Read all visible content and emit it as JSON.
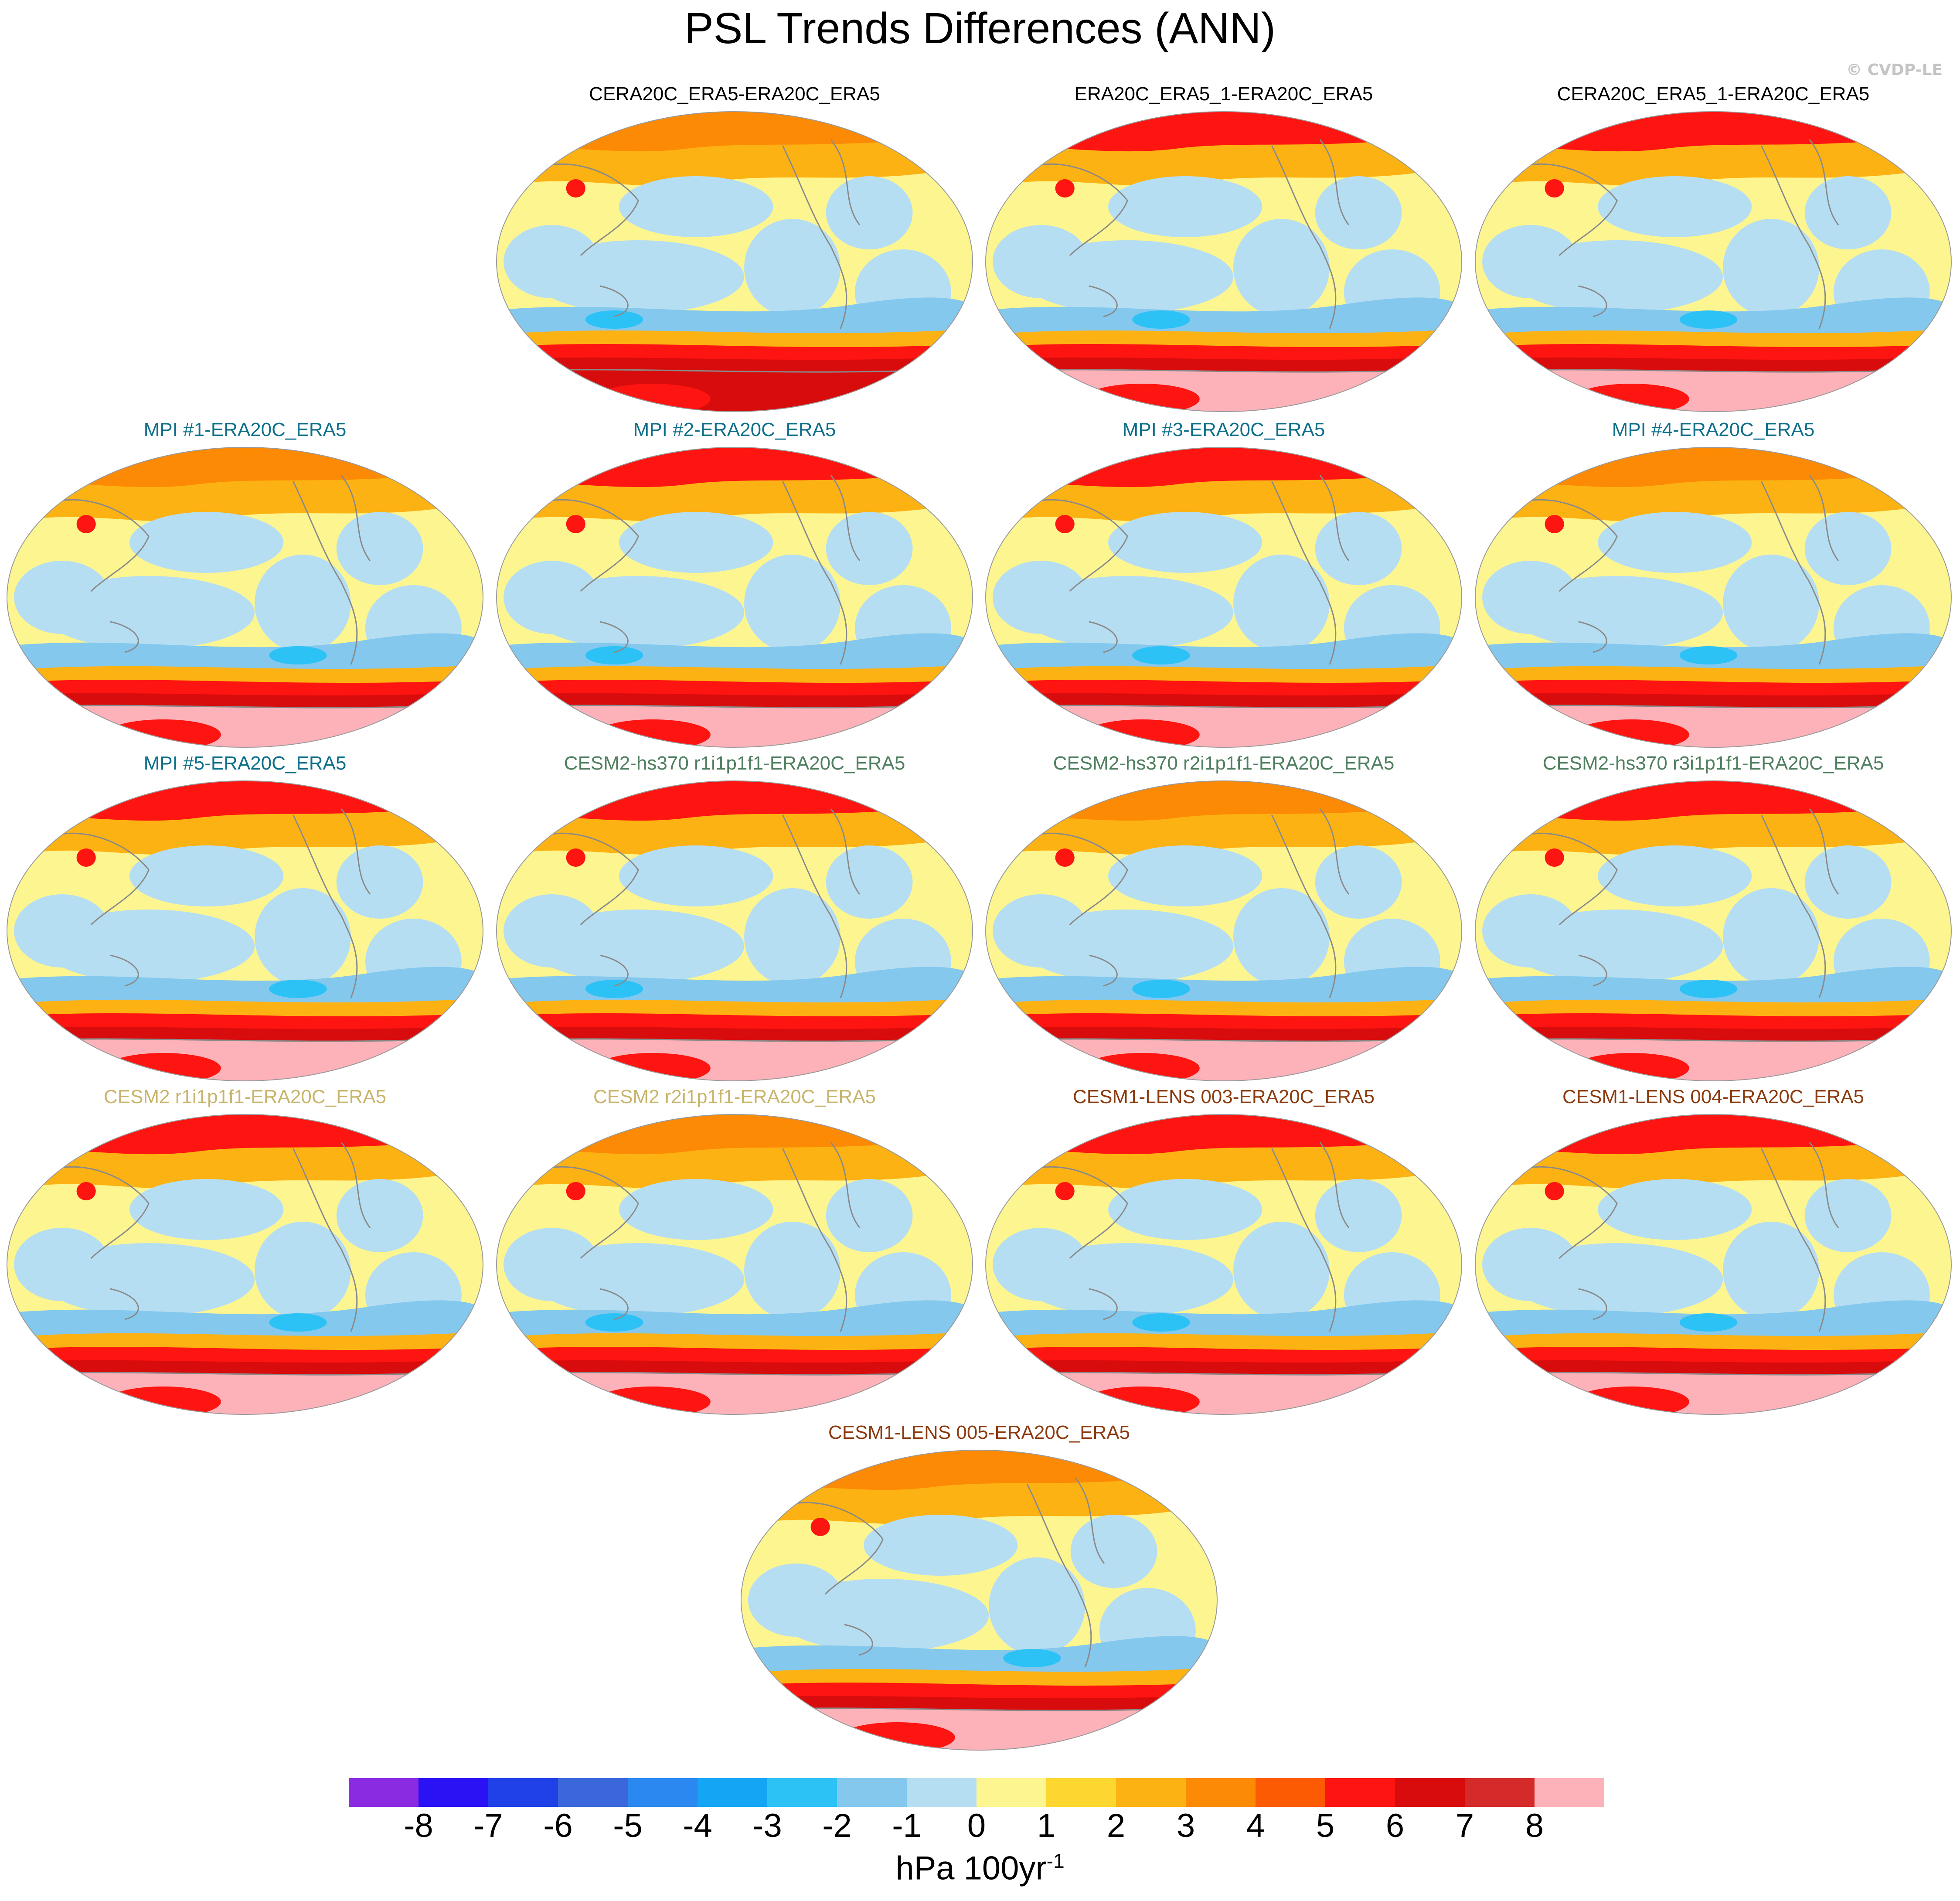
{
  "title": "PSL Trends Differences (ANN)",
  "credit": "© CVDP-LE",
  "colors": {
    "group_black": "#000000",
    "group_mpi": "#0e6f8a",
    "group_cesm2hs": "#4f7f5f",
    "group_cesm2": "#c8b46a",
    "group_cesm1": "#8b3a0e"
  },
  "panels": [
    {
      "title": "CERA20C_ERA5-ERA20C_ERA5",
      "group": "black",
      "row": 0,
      "col": 1
    },
    {
      "title": "ERA20C_ERA5_1-ERA20C_ERA5",
      "group": "black",
      "row": 0,
      "col": 2
    },
    {
      "title": "CERA20C_ERA5_1-ERA20C_ERA5",
      "group": "black",
      "row": 0,
      "col": 3
    },
    {
      "title": "MPI #1-ERA20C_ERA5",
      "group": "mpi",
      "row": 1,
      "col": 0
    },
    {
      "title": "MPI #2-ERA20C_ERA5",
      "group": "mpi",
      "row": 1,
      "col": 1
    },
    {
      "title": "MPI #3-ERA20C_ERA5",
      "group": "mpi",
      "row": 1,
      "col": 2
    },
    {
      "title": "MPI #4-ERA20C_ERA5",
      "group": "mpi",
      "row": 1,
      "col": 3
    },
    {
      "title": "MPI #5-ERA20C_ERA5",
      "group": "mpi",
      "row": 2,
      "col": 0
    },
    {
      "title": "CESM2-hs370 r1i1p1f1-ERA20C_ERA5",
      "group": "cesm2hs",
      "row": 2,
      "col": 1
    },
    {
      "title": "CESM2-hs370 r2i1p1f1-ERA20C_ERA5",
      "group": "cesm2hs",
      "row": 2,
      "col": 2
    },
    {
      "title": "CESM2-hs370 r3i1p1f1-ERA20C_ERA5",
      "group": "cesm2hs",
      "row": 2,
      "col": 3
    },
    {
      "title": "CESM2 r1i1p1f1-ERA20C_ERA5",
      "group": "cesm2",
      "row": 3,
      "col": 0
    },
    {
      "title": "CESM2 r2i1p1f1-ERA20C_ERA5",
      "group": "cesm2",
      "row": 3,
      "col": 1
    },
    {
      "title": "CESM1-LENS 003-ERA20C_ERA5",
      "group": "cesm1",
      "row": 3,
      "col": 2
    },
    {
      "title": "CESM1-LENS 004-ERA20C_ERA5",
      "group": "cesm1",
      "row": 3,
      "col": 3
    },
    {
      "title": "CESM1-LENS 005-ERA20C_ERA5",
      "group": "cesm1",
      "row": 4,
      "col": 1.5
    }
  ],
  "colorbar": {
    "labels": [
      "-8",
      "-7",
      "-6",
      "-5",
      "-4",
      "-3",
      "-2",
      "-1",
      "0",
      "1",
      "2",
      "3",
      "4",
      "5",
      "6",
      "7",
      "8"
    ],
    "colors": [
      "#8a2be2",
      "#2a12f5",
      "#2040e8",
      "#3a68dc",
      "#2a88f0",
      "#14a6f5",
      "#2cc2f5",
      "#84c8ee",
      "#b6def2",
      "#fdf590",
      "#fed630",
      "#fdb213",
      "#fc8a04",
      "#fd5a04",
      "#fe1410",
      "#d80c0c",
      "#d42a2a",
      "#fdb1b8"
    ],
    "units": "hPa 100yr",
    "units_exponent": "-1"
  },
  "map_palette": {
    "ocean_blue": "#b6def2",
    "mid_blue": "#84c8ee",
    "deep_blue": "#2cc2f5",
    "yellow": "#fdf590",
    "gold": "#fed630",
    "orange": "#fdb213",
    "dark_orange": "#fc8a04",
    "red": "#fe1410",
    "dark_red": "#d80c0c",
    "pink": "#fdb1b8",
    "coast": "#8a8a8a"
  }
}
